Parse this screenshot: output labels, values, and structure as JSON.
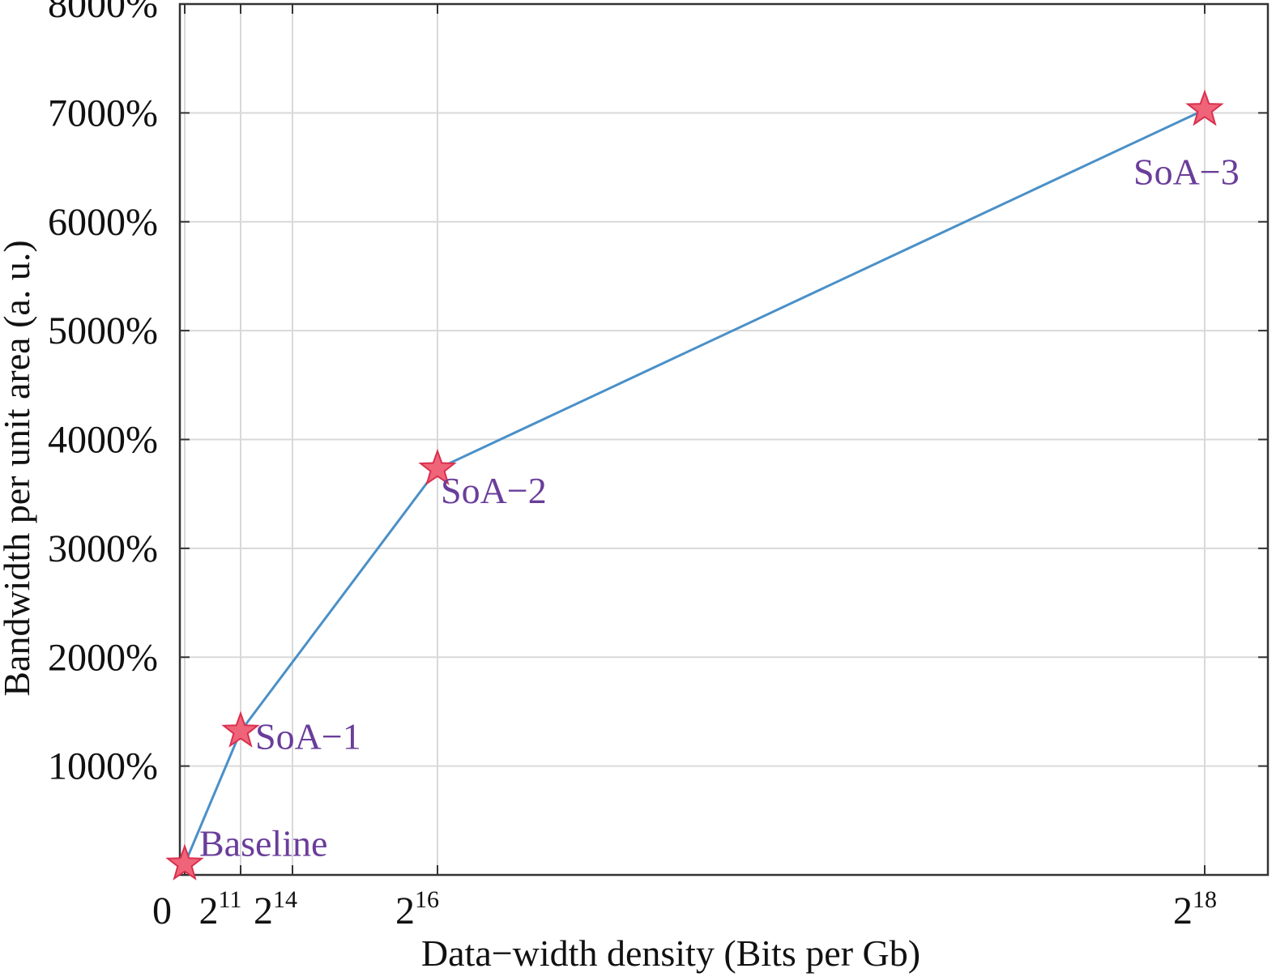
{
  "chart_data": {
    "type": "line",
    "title": "",
    "xlabel": "Data−width density (Bits per Gb)",
    "ylabel": "Bandwidth per unit area (a. u.)",
    "x_ticks": [
      {
        "base": "0",
        "exp": ""
      },
      {
        "base": "2",
        "exp": "11"
      },
      {
        "base": "2",
        "exp": "14"
      },
      {
        "base": "2",
        "exp": "16"
      },
      {
        "base": "2",
        "exp": "18"
      }
    ],
    "y_ticks": [
      "1000%",
      "2000%",
      "3000%",
      "4000%",
      "5000%",
      "6000%",
      "7000%",
      "8000%"
    ],
    "ylim": [
      0,
      8000
    ],
    "grid": true,
    "colors": {
      "line": "#4a90c8",
      "marker_fill": "#f06479",
      "marker_stroke": "#d9304e",
      "label": "#6a3d9a",
      "grid": "#d9d9d9",
      "axis": "#333333"
    },
    "series": [
      {
        "points": [
          {
            "label": "Baseline",
            "x": 0,
            "y": 100
          },
          {
            "label": "SoA−1",
            "x": 2048,
            "y": 1320
          },
          {
            "label": "SoA−2",
            "x": 65536,
            "y": 3730
          },
          {
            "label": "SoA−3",
            "x": 262144,
            "y": 7030
          }
        ]
      }
    ]
  }
}
